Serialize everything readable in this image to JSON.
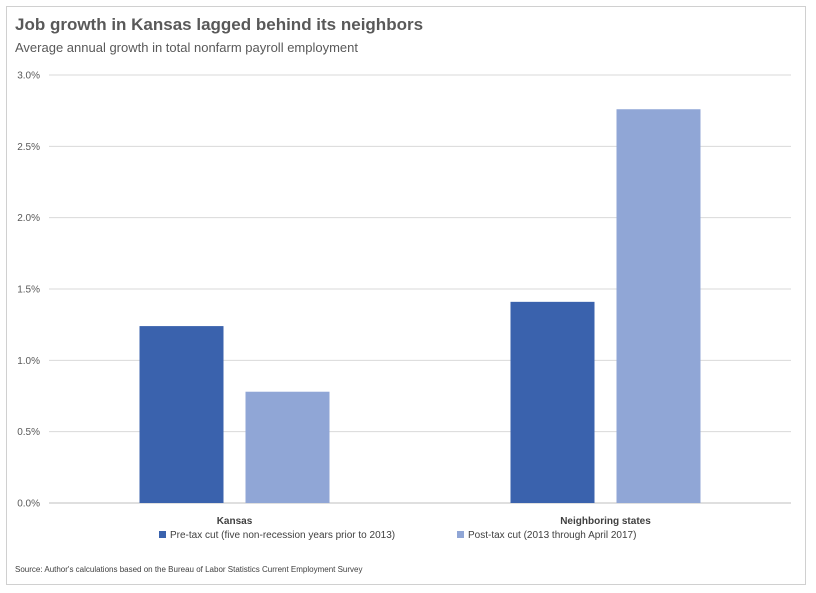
{
  "chart_data": {
    "type": "bar",
    "title": "Job growth in Kansas lagged behind its neighbors",
    "subtitle": "Average annual growth in total nonfarm payroll employment",
    "categories": [
      "Kansas",
      "Neighboring states"
    ],
    "series": [
      {
        "name": "Pre-tax cut (five non-recession years prior to 2013)",
        "values": [
          1.24,
          1.41
        ],
        "color": "#3a62ad"
      },
      {
        "name": "Post-tax cut (2013 through April 2017)",
        "values": [
          0.78,
          2.76
        ],
        "color": "#90a6d6"
      }
    ],
    "ylim": [
      0,
      3.0
    ],
    "yticks": [
      0.0,
      0.5,
      1.0,
      1.5,
      2.0,
      2.5,
      3.0
    ],
    "ytick_labels": [
      "0.0%",
      "0.5%",
      "1.0%",
      "1.5%",
      "2.0%",
      "2.5%",
      "3.0%"
    ],
    "grid": true,
    "legend_position": "bottom",
    "source": "Source: Author's calculations based on the Bureau of Labor Statistics Current Employment Survey"
  }
}
